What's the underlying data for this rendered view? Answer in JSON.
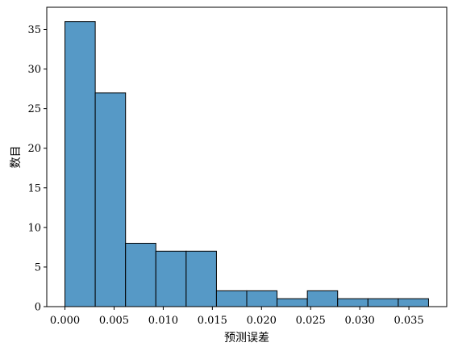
{
  "chart_data": {
    "type": "bar",
    "subtype": "histogram",
    "xlabel": "预测误差",
    "ylabel": "数目",
    "bin_edges": [
      0.0,
      0.003083,
      0.006167,
      0.00925,
      0.012333,
      0.015417,
      0.0185,
      0.021583,
      0.024667,
      0.02775,
      0.030833,
      0.033917,
      0.037
    ],
    "counts": [
      36,
      27,
      8,
      7,
      7,
      2,
      2,
      1,
      2,
      1,
      1,
      1
    ],
    "xlim": [
      -0.00185,
      0.03885
    ],
    "ylim": [
      0,
      37.8
    ],
    "xticks": [
      0.0,
      0.005,
      0.01,
      0.015,
      0.02,
      0.025,
      0.03,
      0.035
    ],
    "xtick_labels": [
      "0.000",
      "0.005",
      "0.010",
      "0.015",
      "0.020",
      "0.025",
      "0.030",
      "0.035"
    ],
    "yticks": [
      0,
      5,
      10,
      15,
      20,
      25,
      30,
      35
    ],
    "ytick_labels": [
      "0",
      "5",
      "10",
      "15",
      "20",
      "25",
      "30",
      "35"
    ],
    "bar_color": "#5699c6",
    "edge_color": "#000000",
    "grid": false,
    "legend": false
  }
}
